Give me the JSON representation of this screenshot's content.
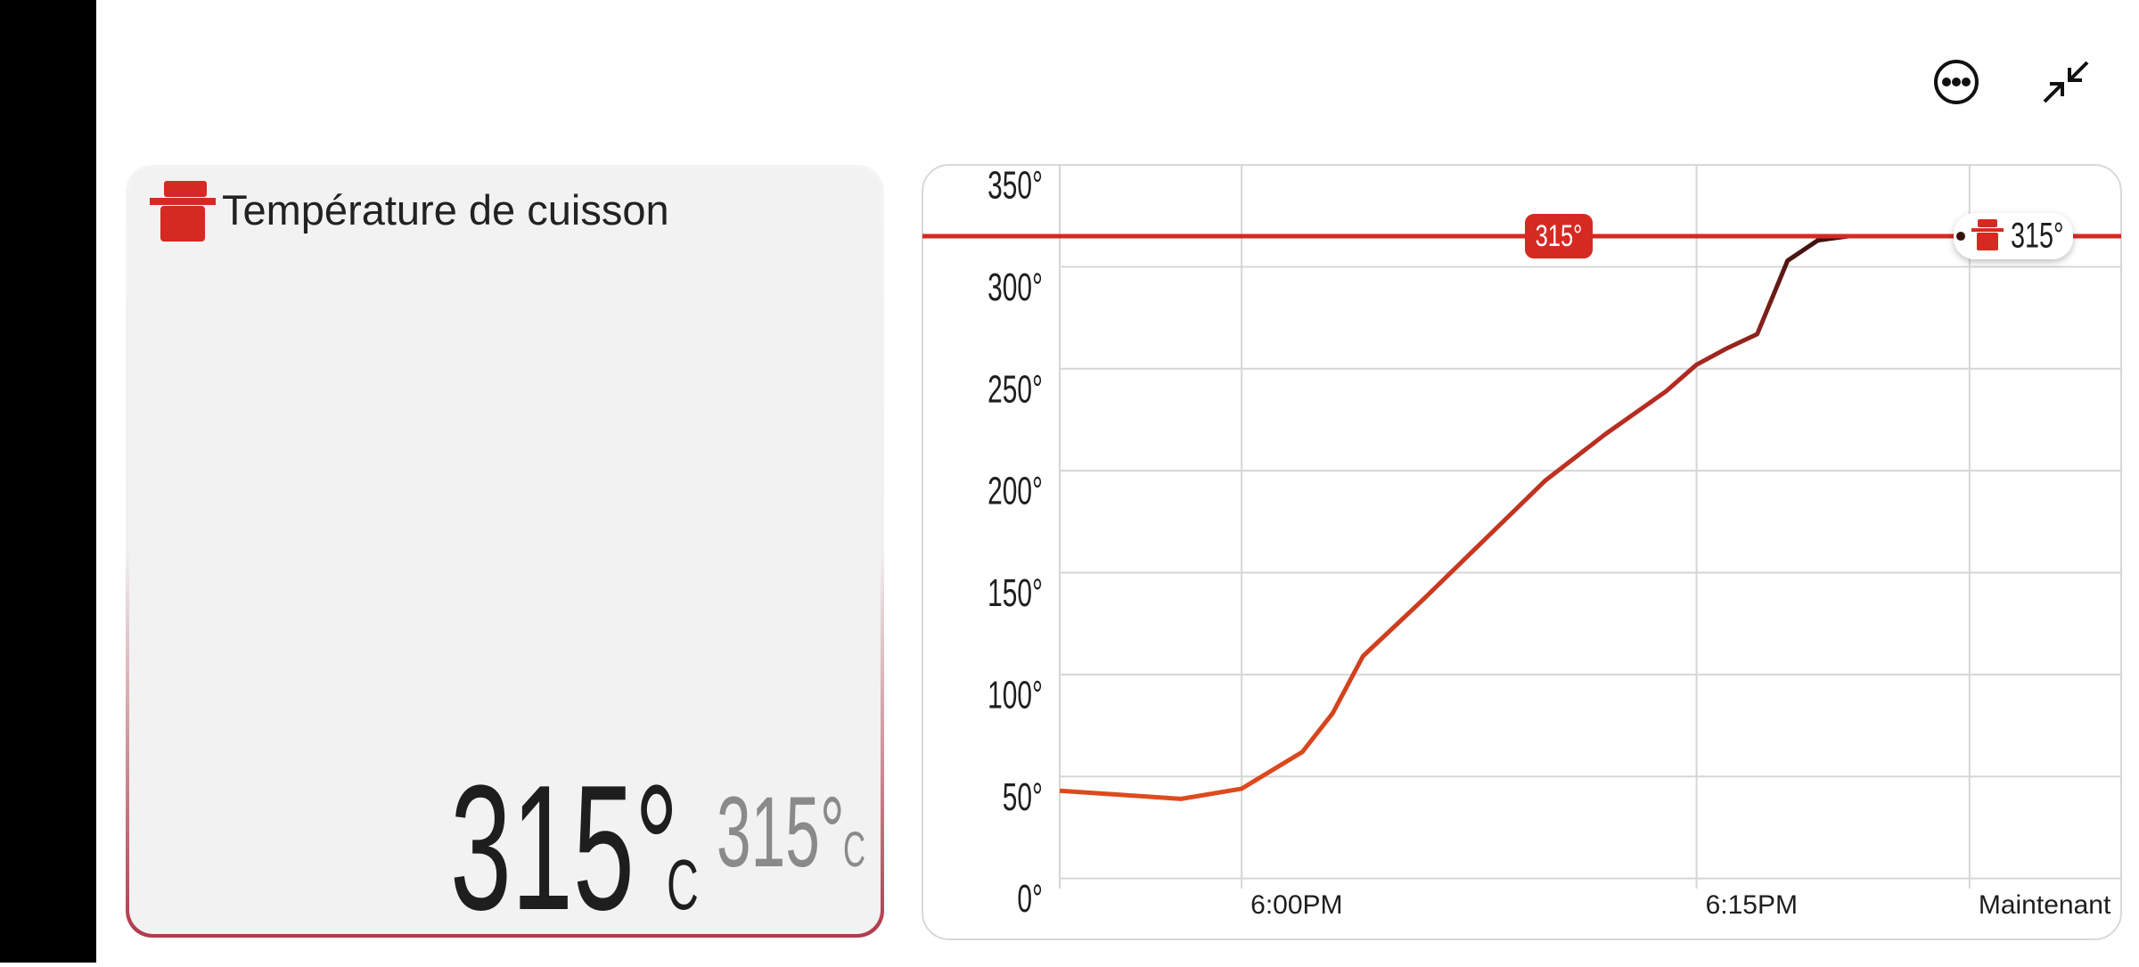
{
  "card": {
    "title": "Température de cuisson",
    "current": "315°",
    "current_unit": "C",
    "target": "315°",
    "target_unit": "C"
  },
  "chart_data": {
    "type": "line",
    "x": [
      "5:54PM",
      "5:56PM",
      "5:58PM",
      "6:00PM",
      "6:02PM",
      "6:03PM",
      "6:04PM",
      "6:06PM",
      "6:08PM",
      "6:10PM",
      "6:12PM",
      "6:14PM",
      "6:15PM",
      "6:16PM",
      "6:17PM",
      "6:18PM",
      "6:19PM",
      "6:20PM",
      "6:24PM"
    ],
    "values": [
      43,
      41,
      39,
      44,
      62,
      81,
      109,
      137,
      166,
      195,
      218,
      239,
      252,
      260,
      267,
      303,
      313,
      315,
      315
    ],
    "color": "#e8521c",
    "xlim": [
      "5:54PM",
      "6:29PM"
    ],
    "xticks": [
      "6:00PM",
      "6:15PM",
      {
        "value": "6:24PM",
        "label": "Maintenant"
      }
    ],
    "ylim": [
      -5,
      350
    ],
    "yticks": [
      {
        "value": 0,
        "label": "0°"
      },
      {
        "value": 50,
        "label": "50°"
      },
      {
        "value": 100,
        "label": "100°"
      },
      {
        "value": 150,
        "label": "150°"
      },
      {
        "value": 200,
        "label": "200°"
      },
      {
        "value": 250,
        "label": "250°"
      },
      {
        "value": 300,
        "label": "300°"
      },
      {
        "value": 350,
        "label": "350°"
      }
    ],
    "grid": true,
    "target_line": {
      "value": 315,
      "label": "315°",
      "color": "#d42a22"
    },
    "last_value_label": "315°"
  }
}
